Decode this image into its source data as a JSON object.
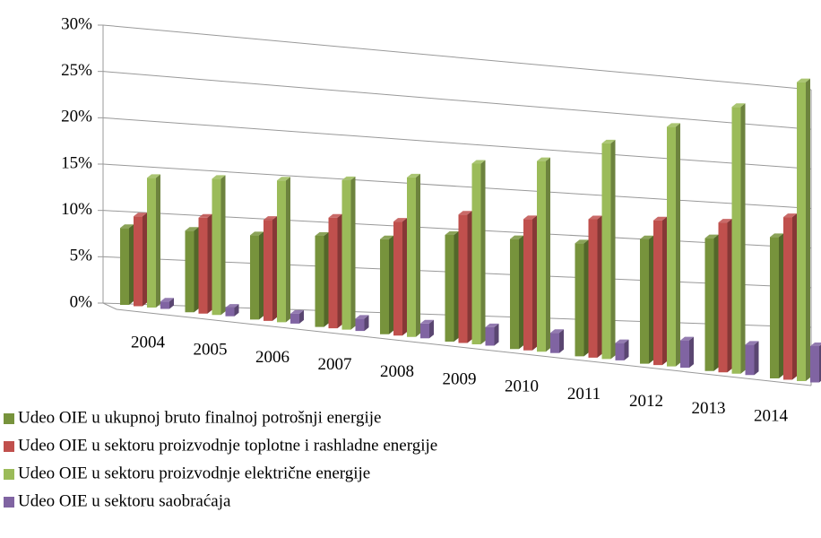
{
  "chart_data": {
    "type": "bar3d",
    "categories": [
      "2004",
      "2005",
      "2006",
      "2007",
      "2008",
      "2009",
      "2010",
      "2011",
      "2012",
      "2013",
      "2014"
    ],
    "series": [
      {
        "name": "Udeo OIE u ukupnoj bruto finalnoj potrošnji energije",
        "color": "#77933c",
        "values": [
          8.3,
          8.5,
          8.5,
          8.9,
          9.0,
          9.8,
          9.8,
          9.8,
          10.5,
          10.9,
          11.3
        ]
      },
      {
        "name": "Udeo OIE u sektoru proizvodnje toplotne i rashladne energije",
        "color": "#c0504d",
        "values": [
          9.7,
          10.0,
          10.2,
          10.8,
          10.8,
          11.8,
          11.7,
          12.0,
          12.2,
          12.3,
          13.0
        ]
      },
      {
        "name": "Udeo OIE u sektoru proizvodnje električne energije",
        "color": "#9bbb59",
        "values": [
          14.0,
          14.2,
          14.3,
          14.6,
          15.1,
          16.6,
          17.0,
          18.7,
          20.2,
          21.9,
          23.9
        ]
      },
      {
        "name": "Udeo OIE u sektoru saobraćaja",
        "color": "#8064a2",
        "values": [
          0.8,
          0.9,
          1.0,
          1.2,
          1.4,
          1.7,
          1.8,
          1.5,
          2.3,
          2.5,
          2.9
        ]
      }
    ],
    "ylim": [
      0,
      30
    ],
    "yticks": [
      {
        "value": 0,
        "label": "0%"
      },
      {
        "value": 5,
        "label": "5%"
      },
      {
        "value": 10,
        "label": "10%"
      },
      {
        "value": 15,
        "label": "15%"
      },
      {
        "value": 20,
        "label": "20%"
      },
      {
        "value": 25,
        "label": "25%"
      },
      {
        "value": 30,
        "label": "30%"
      }
    ],
    "grid": true,
    "legend_position": "bottom"
  }
}
